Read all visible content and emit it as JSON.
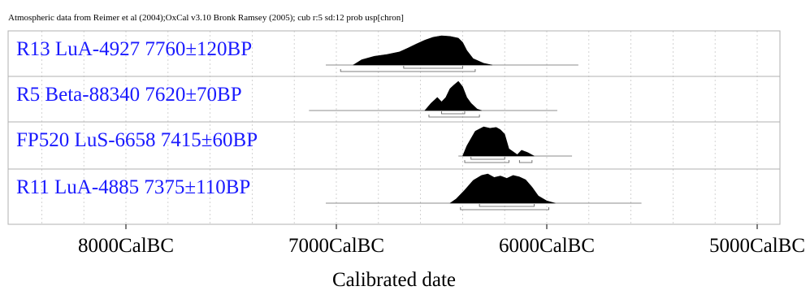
{
  "header": {
    "caption": "Atmospheric data from Reimer et al (2004);OxCal v3.10 Bronk Ramsey (2005); cub r:5 sd:12 prob usp[chron]"
  },
  "chart_data": {
    "type": "area",
    "title": "",
    "xlabel": "Calibrated date",
    "ylabel": "",
    "x_unit": "CalBC",
    "xlim": [
      8600,
      4900
    ],
    "grid": true,
    "ticks": [
      {
        "value": 8000,
        "label": "8000CalBC"
      },
      {
        "value": 7000,
        "label": "7000CalBC"
      },
      {
        "value": 6000,
        "label": "6000CalBC"
      },
      {
        "value": 5000,
        "label": "5000CalBC"
      }
    ],
    "series": [
      {
        "name": "R13 LuA-4927  7760±120BP",
        "curve_range": [
          7050,
          5850
        ],
        "distribution": [
          [
            6920,
            0
          ],
          [
            6880,
            0.18
          ],
          [
            6820,
            0.3
          ],
          [
            6760,
            0.36
          ],
          [
            6700,
            0.45
          ],
          [
            6660,
            0.58
          ],
          [
            6620,
            0.72
          ],
          [
            6580,
            0.85
          ],
          [
            6540,
            0.95
          ],
          [
            6500,
            1.0
          ],
          [
            6460,
            0.98
          ],
          [
            6420,
            0.92
          ],
          [
            6400,
            0.78
          ],
          [
            6380,
            0.5
          ],
          [
            6350,
            0.22
          ],
          [
            6300,
            0.06
          ],
          [
            6260,
            0
          ]
        ],
        "ranges_68": [
          [
            6680,
            6400
          ]
        ],
        "ranges_95": [
          [
            6980,
            6340
          ]
        ]
      },
      {
        "name": "R5 Beta-88340  7620±70BP",
        "curve_range": [
          7130,
          5950
        ],
        "distribution": [
          [
            6580,
            0
          ],
          [
            6550,
            0.25
          ],
          [
            6520,
            0.45
          ],
          [
            6500,
            0.3
          ],
          [
            6480,
            0.45
          ],
          [
            6460,
            0.75
          ],
          [
            6440,
            0.88
          ],
          [
            6420,
            1.0
          ],
          [
            6400,
            0.82
          ],
          [
            6380,
            0.45
          ],
          [
            6360,
            0.25
          ],
          [
            6330,
            0.05
          ],
          [
            6310,
            0
          ]
        ],
        "ranges_68": [
          [
            6500,
            6390
          ]
        ],
        "ranges_95": [
          [
            6560,
            6320
          ]
        ]
      },
      {
        "name": "FP520 LuS-6658  7415±60BP",
        "curve_range": [
          6420,
          5880
        ],
        "distribution": [
          [
            6400,
            0
          ],
          [
            6380,
            0.35
          ],
          [
            6340,
            0.85
          ],
          [
            6300,
            1.0
          ],
          [
            6270,
            0.95
          ],
          [
            6240,
            0.98
          ],
          [
            6220,
            0.9
          ],
          [
            6200,
            0.75
          ],
          [
            6180,
            0.25
          ],
          [
            6140,
            0.05
          ],
          [
            6120,
            0.2
          ],
          [
            6090,
            0.12
          ],
          [
            6060,
            0
          ]
        ],
        "ranges_68": [
          [
            6360,
            6200
          ]
        ],
        "ranges_95": [
          [
            6390,
            6180
          ],
          [
            6130,
            6070
          ]
        ]
      },
      {
        "name": "R11 LuA-4885  7375±110BP",
        "curve_range": [
          7050,
          5550
        ],
        "distribution": [
          [
            6460,
            0
          ],
          [
            6430,
            0.15
          ],
          [
            6390,
            0.45
          ],
          [
            6350,
            0.78
          ],
          [
            6310,
            0.95
          ],
          [
            6280,
            1.0
          ],
          [
            6250,
            0.88
          ],
          [
            6220,
            0.93
          ],
          [
            6190,
            0.85
          ],
          [
            6160,
            0.95
          ],
          [
            6130,
            0.9
          ],
          [
            6100,
            0.8
          ],
          [
            6070,
            0.55
          ],
          [
            6040,
            0.25
          ],
          [
            6000,
            0.08
          ],
          [
            5960,
            0
          ]
        ],
        "ranges_68": [
          [
            6320,
            6060
          ]
        ],
        "ranges_95": [
          [
            6410,
            5990
          ]
        ]
      }
    ]
  }
}
